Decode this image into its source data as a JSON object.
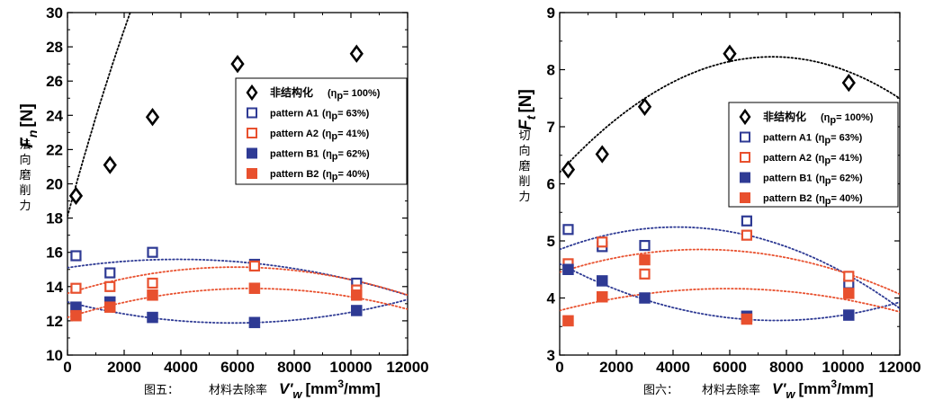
{
  "chart_data": [
    {
      "type": "scatter",
      "ylabel_symbol": "F",
      "ylabel_sub": "n",
      "ylabel_unit": "[N]",
      "ylabel_cn": "法向磨削力",
      "caption": "图五：",
      "xlabel_cn": "材料去除率",
      "xlabel": "V'w [mm3/mm]",
      "xlim": [
        0,
        12000
      ],
      "ylim": [
        10,
        30
      ],
      "xticks": [
        0,
        2000,
        4000,
        6000,
        8000,
        10000,
        12000
      ],
      "yticks": [
        10,
        12,
        14,
        16,
        18,
        20,
        22,
        24,
        26,
        28,
        30
      ],
      "legend_position": "upper-right",
      "series": [
        {
          "name": "非结构化 (ηp= 100%)",
          "marker": "diamond",
          "color": "#000000",
          "x": [
            300,
            1500,
            3000,
            6000,
            10200
          ],
          "y": [
            19.3,
            21.1,
            23.9,
            27.0,
            27.6
          ],
          "fit": [
            -3.4e-07,
            0.00613,
            18.1
          ]
        },
        {
          "name": "pattern A1 (ηp = 63%)",
          "marker": "open-square",
          "color": "#2e3a94",
          "x": [
            300,
            1500,
            3000,
            6600,
            10200
          ],
          "y": [
            15.8,
            14.8,
            16.0,
            15.3,
            14.2
          ],
          "fit": [
            -3.2e-08,
            0.00025,
            15.1
          ]
        },
        {
          "name": "pattern A2 (ηp = 41%)",
          "marker": "open-square",
          "color": "#e8502e",
          "x": [
            300,
            1500,
            3000,
            6600,
            10200
          ],
          "y": [
            13.9,
            14.0,
            14.2,
            15.2,
            13.8
          ],
          "fit": [
            -4.4e-08,
            0.00052,
            13.6
          ]
        },
        {
          "name": "pattern B1 (ηp = 62%)",
          "marker": "filled-square",
          "color": "#2e3a94",
          "x": [
            300,
            1500,
            3000,
            6600,
            10200
          ],
          "y": [
            12.8,
            13.1,
            12.2,
            11.9,
            12.6
          ],
          "fit": [
            3.6e-08,
            -0.00042,
            13.1
          ]
        },
        {
          "name": "pattern B2 (ηp = 40%)",
          "marker": "filled-square",
          "color": "#e8502e",
          "x": [
            300,
            1500,
            3000,
            6600,
            10200
          ],
          "y": [
            12.3,
            12.8,
            13.5,
            13.9,
            13.5
          ],
          "fit": [
            -4e-08,
            0.00052,
            12.2
          ]
        }
      ]
    },
    {
      "type": "scatter",
      "ylabel_symbol": "F",
      "ylabel_sub": "t",
      "ylabel_unit": "[N]",
      "ylabel_cn": "切向磨削力",
      "caption": "图六：",
      "xlabel_cn": "材料去除率",
      "xlabel": "V'w [mm3/mm]",
      "xlim": [
        0,
        12000
      ],
      "ylim": [
        3,
        9
      ],
      "xticks": [
        0,
        2000,
        4000,
        6000,
        8000,
        10000,
        12000
      ],
      "yticks": [
        3,
        4,
        5,
        6,
        7,
        8,
        9
      ],
      "legend_position": "middle-right",
      "series": [
        {
          "name": "非结构化 (ηp= 100%)",
          "marker": "diamond",
          "color": "#000000",
          "x": [
            300,
            1500,
            3000,
            6000,
            10200
          ],
          "y": [
            6.25,
            6.52,
            7.35,
            8.28,
            7.77
          ],
          "fit": [
            -3.6e-08,
            0.00054,
            6.2
          ]
        },
        {
          "name": "pattern A1 (ηp = 63%)",
          "marker": "open-square",
          "color": "#2e3a94",
          "x": [
            300,
            1500,
            3000,
            6600,
            10200
          ],
          "y": [
            5.2,
            4.9,
            4.92,
            5.35,
            4.25
          ],
          "fit": [
            -2.3e-08,
            0.00019,
            4.85
          ]
        },
        {
          "name": "pattern A2 (ηp = 41%)",
          "marker": "open-square",
          "color": "#e8502e",
          "x": [
            300,
            1500,
            3000,
            6600,
            10200
          ],
          "y": [
            4.6,
            4.98,
            4.42,
            5.1,
            4.38
          ],
          "fit": [
            -1.6e-08,
            0.00016,
            4.45
          ]
        },
        {
          "name": "pattern B1 (ηp = 62%)",
          "marker": "filled-square",
          "color": "#2e3a94",
          "x": [
            300,
            1500,
            3000,
            6600,
            10200
          ],
          "y": [
            4.5,
            4.3,
            4.0,
            3.68,
            3.7
          ],
          "fit": [
            1.7e-08,
            -0.00026,
            4.6
          ]
        },
        {
          "name": "pattern B2 (ηp = 40%)",
          "marker": "filled-square",
          "color": "#e8502e",
          "x": [
            300,
            1500,
            3000,
            6600,
            10200
          ],
          "y": [
            3.6,
            4.02,
            4.67,
            3.63,
            4.08
          ],
          "fit": [
            -1.1e-08,
            0.00013,
            3.78
          ]
        }
      ]
    }
  ],
  "legend_labels": [
    {
      "main": "非结构化",
      "eta": "(η",
      "sub": "p",
      "tail": "= 100%)"
    },
    {
      "main": "pattern A1",
      "eta": "(η",
      "sub": "p",
      "tail": "= 63%)"
    },
    {
      "main": "pattern A2",
      "eta": "(η",
      "sub": "p",
      "tail": "= 41%)"
    },
    {
      "main": "pattern B1",
      "eta": "(η",
      "sub": "p",
      "tail": "= 62%)"
    },
    {
      "main": "pattern B2",
      "eta": "(η",
      "sub": "p",
      "tail": "= 40%)"
    }
  ]
}
